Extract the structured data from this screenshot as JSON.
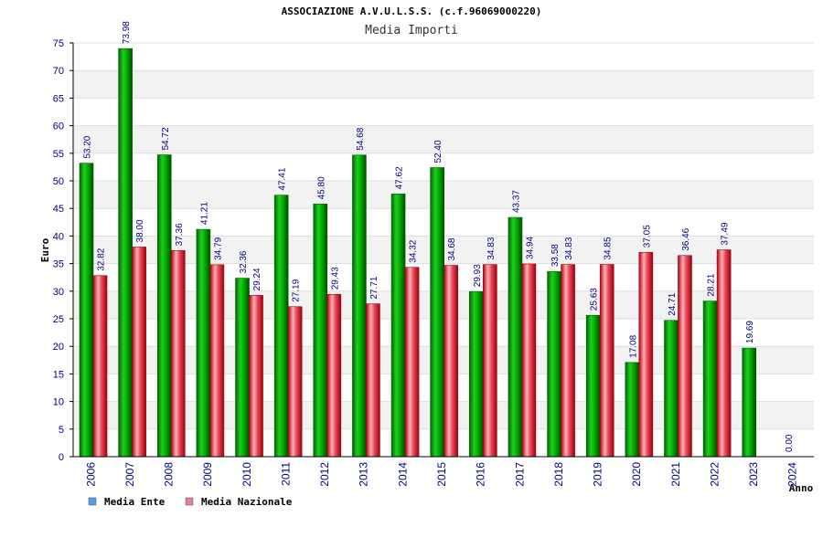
{
  "chart_data": {
    "type": "bar",
    "title": "ASSOCIAZIONE A.V.U.L.S.S. (c.f.96069000220)",
    "subtitle": "Media Importi",
    "ylabel": "Euro",
    "xlabel": "Anno",
    "ylim": [
      0,
      75
    ],
    "yticks": [
      0,
      5,
      10,
      15,
      20,
      25,
      30,
      35,
      40,
      45,
      50,
      55,
      60,
      65,
      70,
      75
    ],
    "grid": true,
    "legend_position": "bottom-left",
    "categories": [
      "2006",
      "2007",
      "2008",
      "2009",
      "2010",
      "2011",
      "2012",
      "2013",
      "2014",
      "2015",
      "2016",
      "2017",
      "2018",
      "2019",
      "2020",
      "2021",
      "2022",
      "2023",
      "2024"
    ],
    "series": [
      {
        "name": "Media Ente",
        "color": "#00b000",
        "legend_color": "#4f9fe8",
        "values": [
          53.2,
          73.98,
          54.72,
          41.21,
          32.36,
          47.41,
          45.8,
          54.68,
          47.62,
          52.4,
          29.93,
          43.37,
          33.58,
          25.63,
          17.08,
          24.71,
          28.21,
          19.69,
          0.0
        ],
        "labels": [
          "53.20",
          "73.98",
          "54.72",
          "41.21",
          "32.36",
          "47.41",
          "45.80",
          "54.68",
          "47.62",
          "52.40",
          "29.93",
          "43.37",
          "33.58",
          "25.63",
          "17.08",
          "24.71",
          "28.21",
          "19.69",
          "0.00"
        ]
      },
      {
        "name": "Media Nazionale",
        "color": "#e02030",
        "legend_color": "#e87aa8",
        "values": [
          32.82,
          38.0,
          37.36,
          34.79,
          29.24,
          27.19,
          29.43,
          27.71,
          34.32,
          34.68,
          34.83,
          34.94,
          34.83,
          34.85,
          37.05,
          36.46,
          37.49,
          null,
          null
        ],
        "labels": [
          "32.82",
          "38.00",
          "37.36",
          "34.79",
          "29.24",
          "27.19",
          "29.43",
          "27.71",
          "34.32",
          "34.68",
          "34.83",
          "34.94",
          "34.83",
          "34.85",
          "37.05",
          "36.46",
          "37.49",
          null,
          null
        ]
      }
    ]
  }
}
